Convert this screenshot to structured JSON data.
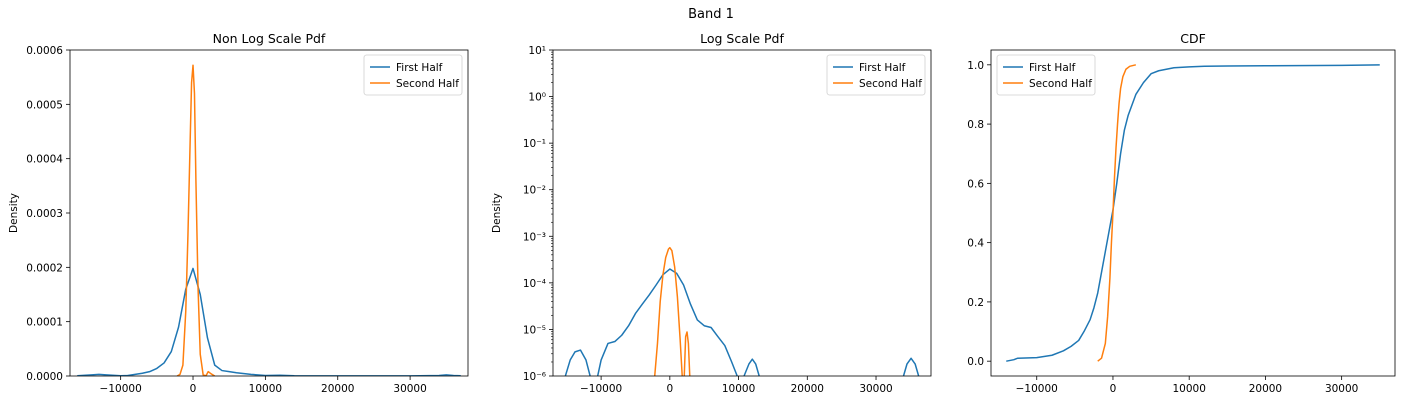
{
  "figure": {
    "title": "Band 1",
    "colors": {
      "first": "#1f77b4",
      "second": "#ff7f0e"
    }
  },
  "chart_data": [
    {
      "type": "line",
      "title": "Non Log Scale Pdf",
      "xlabel": "",
      "ylabel": "Density",
      "xlim": [
        -17000,
        38000
      ],
      "ylim": [
        0,
        0.0006
      ],
      "yscale": "linear",
      "xticks": [
        -10000,
        0,
        10000,
        20000,
        30000
      ],
      "xtick_labels": [
        "−10000",
        "0",
        "10000",
        "20000",
        "30000"
      ],
      "yticks": [
        0,
        0.0001,
        0.0002,
        0.0003,
        0.0004,
        0.0005,
        0.0006
      ],
      "ytick_labels": [
        "0.0000",
        "0.0001",
        "0.0002",
        "0.0003",
        "0.0004",
        "0.0005",
        "0.0006"
      ],
      "legend": {
        "location": "upper right",
        "entries": [
          "First Half",
          "Second Half"
        ]
      },
      "series": [
        {
          "name": "First Half",
          "x": [
            -16000,
            -14000,
            -13000,
            -12000,
            -10000,
            -9000,
            -8000,
            -7000,
            -6000,
            -5000,
            -4000,
            -3000,
            -2000,
            -1000,
            0,
            1000,
            2000,
            3000,
            4000,
            5000,
            6000,
            8000,
            10000,
            12000,
            14000,
            18000,
            22000,
            26000,
            30000,
            34000,
            35000,
            36000,
            37000
          ],
          "y": [
            5e-07,
            2e-06,
            3e-06,
            2e-06,
            5e-07,
            1e-06,
            3e-06,
            5e-06,
            8e-06,
            1.4e-05,
            2.4e-05,
            4.5e-05,
            9e-05,
            0.00016,
            0.000198,
            0.00015,
            7e-05,
            2e-05,
            1e-05,
            8e-06,
            6e-06,
            3e-06,
            1e-06,
            1.5e-06,
            5e-07,
            2e-07,
            2e-07,
            2e-07,
            2e-07,
            1e-06,
            2e-06,
            1e-06,
            5e-07
          ]
        },
        {
          "name": "Second Half",
          "x": [
            -2200,
            -1800,
            -1400,
            -1000,
            -700,
            -400,
            -200,
            0,
            200,
            400,
            700,
            1000,
            1400,
            1800,
            2100,
            2500,
            3000
          ],
          "y": [
            0.0,
            3e-06,
            2e-05,
            0.00012,
            0.00026,
            0.00043,
            0.00054,
            0.000572,
            0.00052,
            0.00036,
            0.00016,
            4e-05,
            2e-06,
            5e-07,
            8e-06,
            4e-06,
            0.0
          ]
        }
      ]
    },
    {
      "type": "line",
      "title": "Log Scale Pdf",
      "xlabel": "",
      "ylabel": "Density",
      "xlim": [
        -17000,
        38000
      ],
      "ylim": [
        1e-06,
        10
      ],
      "yscale": "log",
      "xticks": [
        -10000,
        0,
        10000,
        20000,
        30000
      ],
      "xtick_labels": [
        "−10000",
        "0",
        "10000",
        "20000",
        "30000"
      ],
      "yticks": [
        1e-06,
        1e-05,
        0.0001,
        0.001,
        0.01,
        0.1,
        1,
        10
      ],
      "ytick_labels": [
        "10⁻⁶",
        "10⁻⁵",
        "10⁻⁴",
        "10⁻³",
        "10⁻²",
        "10⁻¹",
        "10⁰",
        "10¹"
      ],
      "legend": {
        "location": "upper right",
        "entries": [
          "First Half",
          "Second Half"
        ]
      },
      "series": [
        {
          "name": "First Half",
          "segments": [
            {
              "x": [
                -15200,
                -14500,
                -13800,
                -13000,
                -12200,
                -11600
              ],
              "y": [
                1e-06,
                2.2e-06,
                3.3e-06,
                3.6e-06,
                2.2e-06,
                1e-06
              ]
            },
            {
              "x": [
                -10500,
                -10000,
                -9000,
                -8000,
                -7000,
                -6000,
                -5000,
                -4000,
                -3000,
                -2000,
                -1000,
                0,
                1000,
                2000,
                3000,
                4000,
                5000,
                6000,
                7000,
                8000,
                9000,
                9800
              ],
              "y": [
                1e-06,
                2.2e-06,
                5e-06,
                5.5e-06,
                7.5e-06,
                1.2e-05,
                2.2e-05,
                3.5e-05,
                5.5e-05,
                9e-05,
                0.00015,
                0.000198,
                0.00016,
                9e-05,
                3.5e-05,
                1.6e-05,
                1.2e-05,
                1.1e-05,
                7e-06,
                4.5e-06,
                2e-06,
                1e-06
              ]
            },
            {
              "x": [
                10800,
                11500,
                12000,
                12500,
                13000
              ],
              "y": [
                1e-06,
                1.8e-06,
                2.3e-06,
                1.8e-06,
                1e-06
              ]
            },
            {
              "x": [
                34000,
                34500,
                35100,
                35700,
                36200
              ],
              "y": [
                1e-06,
                1.8e-06,
                2.4e-06,
                1.8e-06,
                1e-06
              ]
            }
          ]
        },
        {
          "name": "Second Half",
          "segments": [
            {
              "x": [
                -2200,
                -1800,
                -1400,
                -1000,
                -600,
                -200,
                0,
                300,
                700,
                1100,
                1500,
                1800
              ],
              "y": [
                1e-06,
                5e-06,
                4e-05,
                0.00015,
                0.00035,
                0.00053,
                0.00057,
                0.00049,
                0.00022,
                5e-05,
                6e-06,
                1e-06
              ]
            },
            {
              "x": [
                2100,
                2300,
                2500,
                2700,
                2900
              ],
              "y": [
                1e-06,
                7e-06,
                8.8e-06,
                5e-06,
                1e-06
              ]
            }
          ]
        }
      ]
    },
    {
      "type": "line",
      "title": "CDF",
      "xlabel": "",
      "ylabel": "",
      "xlim": [
        -16000,
        37000
      ],
      "ylim": [
        -0.05,
        1.05
      ],
      "yscale": "linear",
      "xticks": [
        -10000,
        0,
        10000,
        20000,
        30000
      ],
      "xtick_labels": [
        "−10000",
        "0",
        "10000",
        "20000",
        "30000"
      ],
      "yticks": [
        0.0,
        0.2,
        0.4,
        0.6,
        0.8,
        1.0
      ],
      "ytick_labels": [
        "0.0",
        "0.2",
        "0.4",
        "0.6",
        "0.8",
        "1.0"
      ],
      "legend": {
        "location": "upper left",
        "entries": [
          "First Half",
          "Second Half"
        ]
      },
      "series": [
        {
          "name": "First Half",
          "x": [
            -14000,
            -13000,
            -12500,
            -10000,
            -8000,
            -6500,
            -5500,
            -4500,
            -3800,
            -3000,
            -2500,
            -2000,
            -1500,
            -1000,
            -500,
            0,
            500,
            1000,
            1500,
            2000,
            3000,
            4000,
            5000,
            6000,
            8000,
            10000,
            12000,
            15000,
            20000,
            30000,
            35000
          ],
          "y": [
            0.0,
            0.005,
            0.01,
            0.012,
            0.02,
            0.035,
            0.05,
            0.07,
            0.1,
            0.14,
            0.18,
            0.23,
            0.3,
            0.37,
            0.44,
            0.51,
            0.6,
            0.7,
            0.78,
            0.83,
            0.9,
            0.94,
            0.97,
            0.98,
            0.99,
            0.993,
            0.995,
            0.996,
            0.997,
            0.998,
            1.0
          ]
        },
        {
          "name": "Second Half",
          "x": [
            -2000,
            -1500,
            -1000,
            -700,
            -400,
            -200,
            0,
            200,
            400,
            600,
            800,
            1000,
            1300,
            1700,
            2200,
            3000
          ],
          "y": [
            0.0,
            0.01,
            0.06,
            0.15,
            0.28,
            0.4,
            0.5,
            0.62,
            0.72,
            0.8,
            0.87,
            0.92,
            0.96,
            0.985,
            0.995,
            1.0
          ]
        }
      ]
    }
  ]
}
